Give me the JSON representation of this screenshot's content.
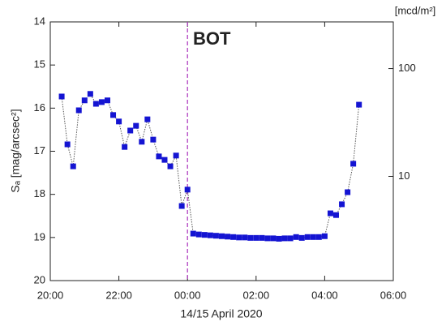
{
  "chart_data": {
    "type": "line",
    "xlabel": "14/15 April 2020",
    "ylabel": "Sₐ [mag/arcsec²]",
    "y2label": "[mcd/m²]",
    "annotation": "BOT",
    "vline": 24,
    "vline_color": "#b040c0",
    "xlim": [
      20,
      30
    ],
    "xticks": [
      {
        "value": 20,
        "label": "20:00"
      },
      {
        "value": 22,
        "label": "22:00"
      },
      {
        "value": 24,
        "label": "00:00"
      },
      {
        "value": 26,
        "label": "02:00"
      },
      {
        "value": 28,
        "label": "04:00"
      },
      {
        "value": 30,
        "label": "06:00"
      }
    ],
    "ylim": [
      20,
      14
    ],
    "yticks": [
      14,
      15,
      16,
      17,
      18,
      19,
      20
    ],
    "y2lim": [
      1.08,
      271
    ],
    "y2ticks": [
      10,
      100
    ],
    "y2log": true,
    "x": [
      20.333,
      20.5,
      20.667,
      20.833,
      21,
      21.167,
      21.333,
      21.5,
      21.667,
      21.833,
      22,
      22.167,
      22.333,
      22.5,
      22.667,
      22.833,
      23,
      23.167,
      23.333,
      23.5,
      23.667,
      23.833,
      24,
      24.167,
      24.333,
      24.5,
      24.667,
      24.833,
      25,
      25.167,
      25.333,
      25.5,
      25.667,
      25.833,
      26,
      26.167,
      26.333,
      26.5,
      26.667,
      26.833,
      27,
      27.167,
      27.333,
      27.5,
      27.667,
      27.833,
      28,
      28.167,
      28.333,
      28.5,
      28.667,
      28.833,
      29
    ],
    "series": [
      {
        "color": "#1414d2",
        "values": [
          15.73,
          16.84,
          17.35,
          16.05,
          15.82,
          15.67,
          15.9,
          15.86,
          15.82,
          16.16,
          16.31,
          16.9,
          16.52,
          16.41,
          16.78,
          16.26,
          16.73,
          17.12,
          17.2,
          17.35,
          17.1,
          18.27,
          17.89,
          18.91,
          18.93,
          18.94,
          18.95,
          18.96,
          18.97,
          18.98,
          18.99,
          19.0,
          19.0,
          19.01,
          19.01,
          19.01,
          19.02,
          19.02,
          19.03,
          19.02,
          19.02,
          18.99,
          19.01,
          18.99,
          18.99,
          18.99,
          18.97,
          18.44,
          18.48,
          18.23,
          17.95,
          17.29,
          15.92
        ]
      }
    ]
  }
}
